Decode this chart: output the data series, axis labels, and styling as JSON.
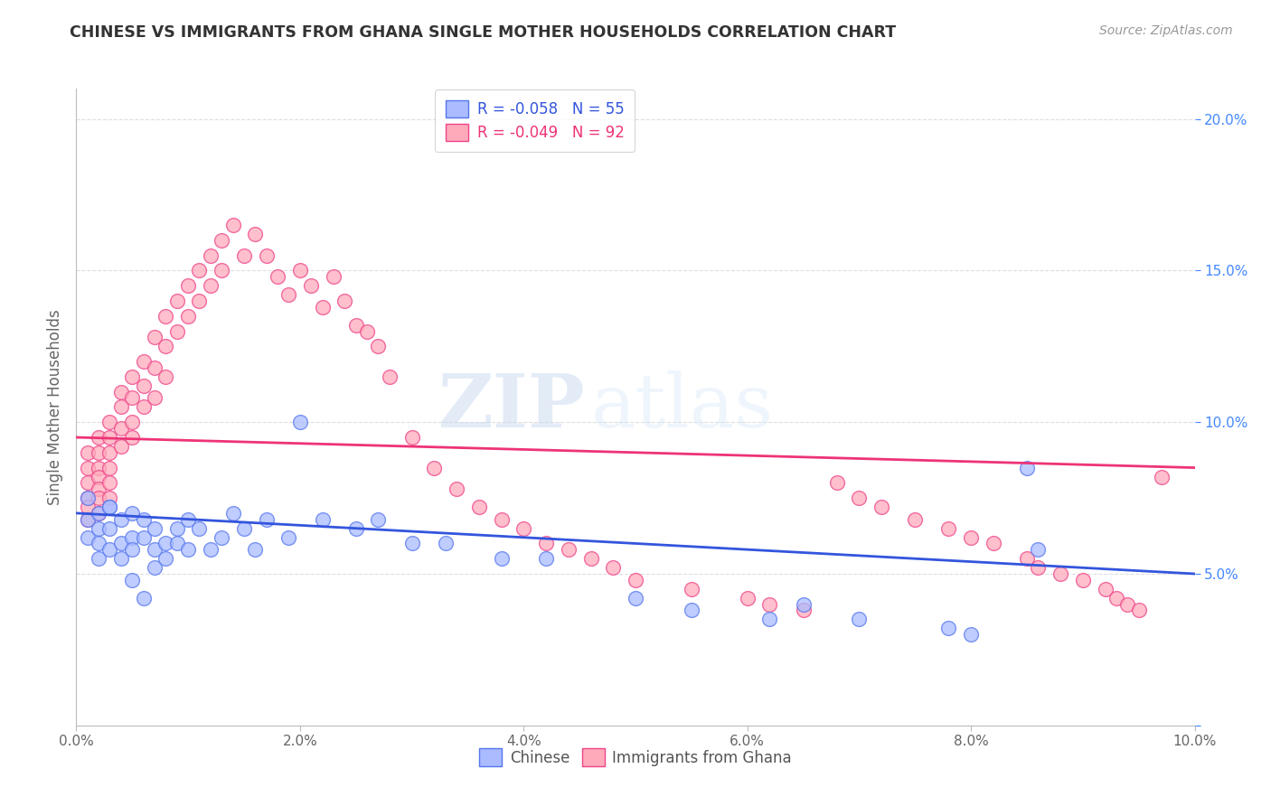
{
  "title": "CHINESE VS IMMIGRANTS FROM GHANA SINGLE MOTHER HOUSEHOLDS CORRELATION CHART",
  "source": "Source: ZipAtlas.com",
  "ylabel": "Single Mother Households",
  "xlim": [
    0.0,
    0.1
  ],
  "ylim": [
    0.0,
    0.21
  ],
  "xticks": [
    0.0,
    0.02,
    0.04,
    0.06,
    0.08,
    0.1
  ],
  "yticks": [
    0.0,
    0.05,
    0.1,
    0.15,
    0.2
  ],
  "xtick_labels": [
    "0.0%",
    "2.0%",
    "4.0%",
    "6.0%",
    "8.0%",
    "10.0%"
  ],
  "ytick_labels_right": [
    "",
    "5.0%",
    "10.0%",
    "15.0%",
    "20.0%"
  ],
  "legend_entry_chinese": "R = -0.058   N = 55",
  "legend_entry_ghana": "R = -0.049   N = 92",
  "chinese_color": "#aabbff",
  "ghana_color": "#ffaabb",
  "chinese_edge_color": "#5577ee",
  "ghana_edge_color": "#ee4488",
  "chinese_line_color": "#3355dd",
  "ghana_line_color": "#ee3377",
  "watermark_zip": "ZIP",
  "watermark_atlas": "atlas",
  "chinese_x": [
    0.001,
    0.001,
    0.001,
    0.002,
    0.002,
    0.002,
    0.002,
    0.003,
    0.003,
    0.003,
    0.003,
    0.004,
    0.004,
    0.004,
    0.005,
    0.005,
    0.005,
    0.005,
    0.006,
    0.006,
    0.006,
    0.007,
    0.007,
    0.007,
    0.008,
    0.008,
    0.009,
    0.009,
    0.01,
    0.01,
    0.011,
    0.012,
    0.013,
    0.014,
    0.015,
    0.016,
    0.017,
    0.019,
    0.02,
    0.022,
    0.025,
    0.027,
    0.03,
    0.033,
    0.038,
    0.042,
    0.05,
    0.055,
    0.062,
    0.065,
    0.07,
    0.078,
    0.08,
    0.085,
    0.086
  ],
  "chinese_y": [
    0.075,
    0.068,
    0.062,
    0.07,
    0.065,
    0.06,
    0.055,
    0.072,
    0.065,
    0.058,
    0.072,
    0.068,
    0.06,
    0.055,
    0.07,
    0.062,
    0.058,
    0.048,
    0.068,
    0.062,
    0.042,
    0.065,
    0.058,
    0.052,
    0.06,
    0.055,
    0.065,
    0.06,
    0.068,
    0.058,
    0.065,
    0.058,
    0.062,
    0.07,
    0.065,
    0.058,
    0.068,
    0.062,
    0.1,
    0.068,
    0.065,
    0.068,
    0.06,
    0.06,
    0.055,
    0.055,
    0.042,
    0.038,
    0.035,
    0.04,
    0.035,
    0.032,
    0.03,
    0.085,
    0.058
  ],
  "ghana_x": [
    0.001,
    0.001,
    0.001,
    0.001,
    0.001,
    0.001,
    0.002,
    0.002,
    0.002,
    0.002,
    0.002,
    0.002,
    0.002,
    0.003,
    0.003,
    0.003,
    0.003,
    0.003,
    0.003,
    0.004,
    0.004,
    0.004,
    0.004,
    0.005,
    0.005,
    0.005,
    0.005,
    0.006,
    0.006,
    0.006,
    0.007,
    0.007,
    0.007,
    0.008,
    0.008,
    0.008,
    0.009,
    0.009,
    0.01,
    0.01,
    0.011,
    0.011,
    0.012,
    0.012,
    0.013,
    0.013,
    0.014,
    0.015,
    0.016,
    0.017,
    0.018,
    0.019,
    0.02,
    0.021,
    0.022,
    0.023,
    0.024,
    0.025,
    0.026,
    0.027,
    0.028,
    0.03,
    0.032,
    0.034,
    0.036,
    0.038,
    0.04,
    0.042,
    0.044,
    0.046,
    0.048,
    0.05,
    0.055,
    0.06,
    0.062,
    0.065,
    0.068,
    0.07,
    0.072,
    0.075,
    0.078,
    0.08,
    0.082,
    0.085,
    0.086,
    0.088,
    0.09,
    0.092,
    0.093,
    0.094,
    0.095,
    0.097
  ],
  "ghana_y": [
    0.09,
    0.085,
    0.08,
    0.075,
    0.072,
    0.068,
    0.095,
    0.09,
    0.085,
    0.082,
    0.078,
    0.075,
    0.07,
    0.1,
    0.095,
    0.09,
    0.085,
    0.08,
    0.075,
    0.11,
    0.105,
    0.098,
    0.092,
    0.115,
    0.108,
    0.1,
    0.095,
    0.12,
    0.112,
    0.105,
    0.128,
    0.118,
    0.108,
    0.135,
    0.125,
    0.115,
    0.14,
    0.13,
    0.145,
    0.135,
    0.15,
    0.14,
    0.155,
    0.145,
    0.16,
    0.15,
    0.165,
    0.155,
    0.162,
    0.155,
    0.148,
    0.142,
    0.15,
    0.145,
    0.138,
    0.148,
    0.14,
    0.132,
    0.13,
    0.125,
    0.115,
    0.095,
    0.085,
    0.078,
    0.072,
    0.068,
    0.065,
    0.06,
    0.058,
    0.055,
    0.052,
    0.048,
    0.045,
    0.042,
    0.04,
    0.038,
    0.08,
    0.075,
    0.072,
    0.068,
    0.065,
    0.062,
    0.06,
    0.055,
    0.052,
    0.05,
    0.048,
    0.045,
    0.042,
    0.04,
    0.038,
    0.082
  ]
}
